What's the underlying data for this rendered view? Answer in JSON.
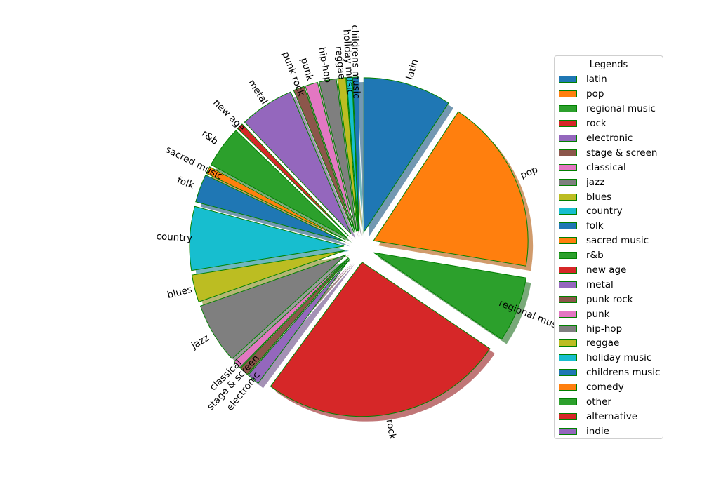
{
  "chart_data": {
    "type": "pie",
    "categories": [
      "latin",
      "pop",
      "regional music",
      "rock",
      "electronic",
      "stage & screen",
      "classical",
      "jazz",
      "blues",
      "country",
      "folk",
      "sacred music",
      "r&b",
      "new age",
      "metal",
      "punk rock",
      "punk",
      "hip-hop",
      "reggae",
      "holiday music",
      "childrens music",
      "comedy",
      "other",
      "alternative",
      "indie"
    ],
    "values": [
      9.7,
      19.3,
      7.2,
      26.9,
      1.4,
      1.0,
      0.9,
      6.7,
      3.0,
      7.0,
      3.1,
      0.8,
      4.6,
      0.7,
      6.0,
      1.2,
      1.4,
      1.9,
      0.9,
      0.6,
      0.7,
      0,
      0,
      0,
      0
    ],
    "colors": [
      "#1f77b4",
      "#ff7f0e",
      "#2ca02c",
      "#d62728",
      "#9467bd",
      "#8c564b",
      "#e377c2",
      "#7f7f7f",
      "#bcbd22",
      "#17becf",
      "#1f77b4",
      "#ff7f0e",
      "#2ca02c",
      "#d62728",
      "#9467bd",
      "#8c564b",
      "#e377c2",
      "#7f7f7f",
      "#bcbd22",
      "#17becf",
      "#1f77b4",
      "#ff7f0e",
      "#2ca02c",
      "#d62728",
      "#9467bd"
    ],
    "edge_color": "#008000",
    "shadow": true,
    "exploded": true,
    "start_angle_deg": 90,
    "direction": "clockwise",
    "legend_title": "Legends",
    "legend_placement": "right"
  }
}
